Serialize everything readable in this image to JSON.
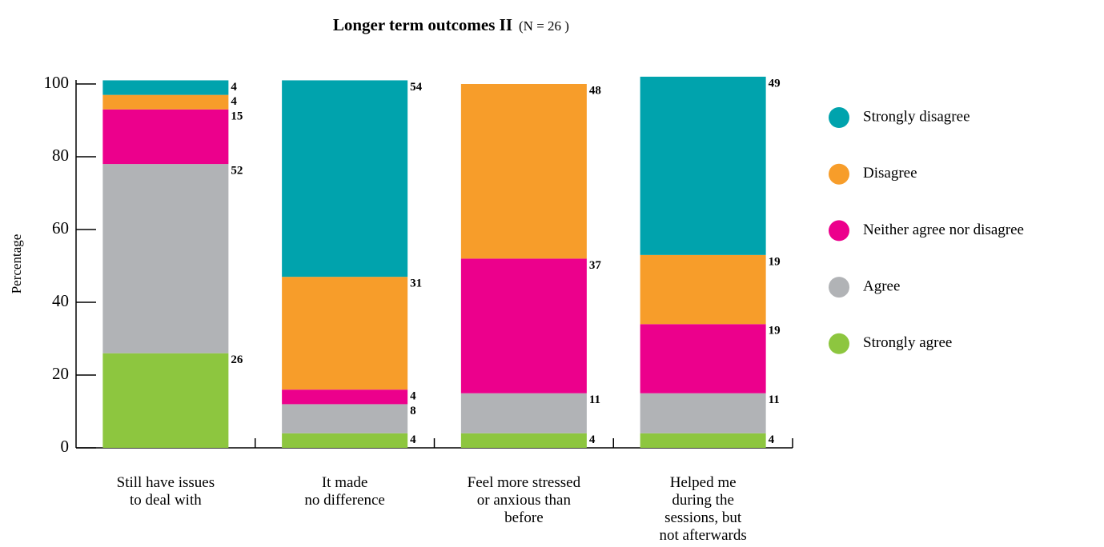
{
  "chart_data": {
    "type": "stacked-bar",
    "title": "Longer term outcomes II",
    "subtitle": "(N = 26 )",
    "y_label": "Percentage",
    "categories": [
      "Still have issues\nto deal with",
      "It made\nno difference",
      "Feel more stressed\nor anxious than\nbefore",
      "Helped me\nduring the\nsessions, but\nnot afterwards"
    ],
    "series": [
      {
        "name": "Strongly disagree",
        "color": "#00a3ad",
        "values": [
          4,
          54,
          null,
          49
        ]
      },
      {
        "name": "Disagree",
        "color": "#f79d2a",
        "values": [
          4,
          31,
          48,
          19
        ]
      },
      {
        "name": "Neither agree nor disagree",
        "color": "#ec008c",
        "values": [
          15,
          4,
          37,
          19
        ]
      },
      {
        "name": "Agree",
        "color": "#b1b3b6",
        "values": [
          52,
          8,
          11,
          11
        ]
      },
      {
        "name": "Strongly agree",
        "color": "#8dc63f",
        "values": [
          26,
          4,
          4,
          4
        ]
      }
    ],
    "ylim": [
      0,
      100
    ],
    "yticks": [
      0,
      20,
      40,
      60,
      80,
      100
    ],
    "legend": "right"
  }
}
